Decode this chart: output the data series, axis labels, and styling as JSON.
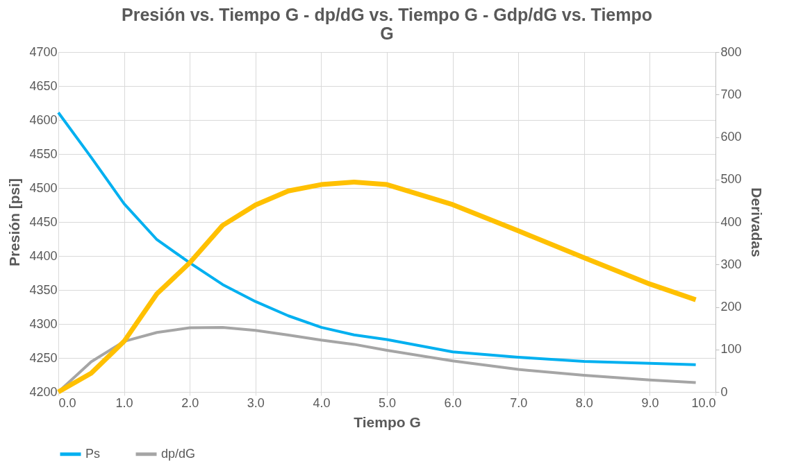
{
  "chart_data": {
    "type": "line",
    "title": "Presión vs. Tiempo G  -  dp/dG vs. Tiempo G  -  Gdp/dG vs. Tiempo G",
    "xlabel": "Tiempo G",
    "ylabel": "Presión [psi]",
    "y2label": "Derivadas",
    "x": [
      0,
      0.5,
      1,
      1.5,
      2,
      2.5,
      3,
      3.5,
      4,
      4.5,
      5,
      6,
      7,
      8,
      9,
      9.7
    ],
    "series": [
      {
        "name": "Ps",
        "color": "#00b0f0",
        "values": [
          4611,
          4545,
          4477,
          4424,
          4390,
          4358,
          4333,
          4312,
          4295,
          4284,
          4277,
          4259,
          4251,
          4245,
          4242,
          4240
        ]
      },
      {
        "name": "dp/dG",
        "color": "#a5a5a5",
        "axis": "y2",
        "values": [
          0,
          71,
          119,
          140,
          151,
          152,
          145,
          134,
          122,
          112,
          98,
          73,
          53,
          39,
          28,
          22
        ]
      },
      {
        "color": "#ffc000",
        "axis": "y2",
        "values": [
          0,
          44,
          119,
          231,
          304,
          392,
          440,
          473,
          488,
          494,
          488,
          441,
          379,
          316,
          254,
          217
        ]
      }
    ],
    "xlim": [
      0,
      10
    ],
    "xticks": [
      {
        "value": 0,
        "label": "0.0"
      },
      {
        "value": 1,
        "label": "1.0"
      },
      {
        "value": 2,
        "label": "2.0"
      },
      {
        "value": 3,
        "label": "3.0"
      },
      {
        "value": 4,
        "label": "4.0"
      },
      {
        "value": 5,
        "label": "5.0"
      },
      {
        "value": 6,
        "label": "6.0"
      },
      {
        "value": 7,
        "label": "7.0"
      },
      {
        "value": 8,
        "label": "8.0"
      },
      {
        "value": 9,
        "label": "9.0"
      },
      {
        "value": 10,
        "label": "10.0"
      }
    ],
    "ylim": [
      4200,
      4700
    ],
    "yticks": [
      4200,
      4250,
      4300,
      4350,
      4400,
      4450,
      4500,
      4550,
      4600,
      4650,
      4700
    ],
    "y2lim": [
      0,
      800
    ],
    "y2ticks": [
      0,
      100,
      200,
      300,
      400,
      500,
      600,
      700,
      800
    ],
    "grid": true,
    "legend": "bottom",
    "marker": "none",
    "line_style": "solid"
  }
}
